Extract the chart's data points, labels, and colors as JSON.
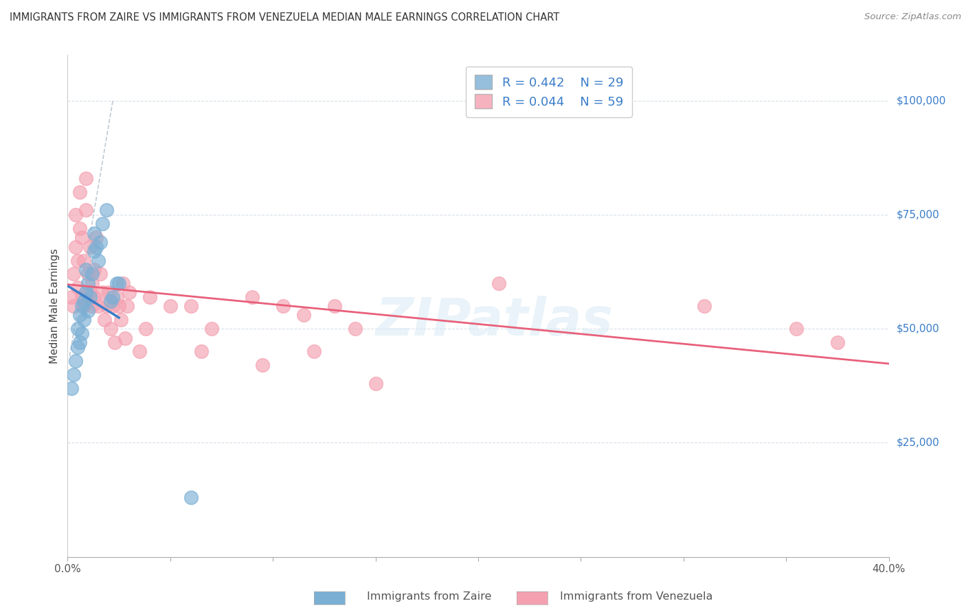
{
  "title": "IMMIGRANTS FROM ZAIRE VS IMMIGRANTS FROM VENEZUELA MEDIAN MALE EARNINGS CORRELATION CHART",
  "source": "Source: ZipAtlas.com",
  "ylabel": "Median Male Earnings",
  "xlim": [
    0.0,
    0.4
  ],
  "ylim": [
    0,
    110000
  ],
  "xticks": [
    0.0,
    0.05,
    0.1,
    0.15,
    0.2,
    0.25,
    0.3,
    0.35,
    0.4
  ],
  "xticklabels": [
    "0.0%",
    "",
    "",
    "",
    "",
    "",
    "",
    "",
    "40.0%"
  ],
  "yticks_right": [
    25000,
    50000,
    75000,
    100000
  ],
  "ytick_labels_right": [
    "$25,000",
    "$50,000",
    "$75,000",
    "$100,000"
  ],
  "zaire_color": "#7bafd4",
  "venezuela_color": "#f4a0b0",
  "zaire_line_color": "#3a7dc9",
  "venezuela_line_color": "#e8607a",
  "diagonal_color": "#b8c4d0",
  "R_zaire": 0.442,
  "N_zaire": 29,
  "R_venezuela": 0.044,
  "N_venezuela": 59,
  "watermark": "ZIPatlas",
  "zaire_x": [
    0.002,
    0.003,
    0.004,
    0.005,
    0.005,
    0.006,
    0.006,
    0.007,
    0.007,
    0.008,
    0.008,
    0.009,
    0.009,
    0.01,
    0.01,
    0.011,
    0.012,
    0.013,
    0.013,
    0.014,
    0.015,
    0.016,
    0.017,
    0.019,
    0.021,
    0.022,
    0.024,
    0.025,
    0.06
  ],
  "zaire_y": [
    37000,
    40000,
    43000,
    46000,
    50000,
    47000,
    53000,
    49000,
    55000,
    52000,
    56000,
    58000,
    63000,
    54000,
    60000,
    57000,
    62000,
    67000,
    71000,
    68000,
    65000,
    69000,
    73000,
    76000,
    56000,
    57000,
    60000,
    60000,
    13000
  ],
  "venezuela_x": [
    0.002,
    0.003,
    0.003,
    0.004,
    0.004,
    0.005,
    0.005,
    0.006,
    0.006,
    0.007,
    0.007,
    0.008,
    0.008,
    0.009,
    0.009,
    0.01,
    0.01,
    0.011,
    0.011,
    0.012,
    0.012,
    0.013,
    0.013,
    0.014,
    0.015,
    0.016,
    0.017,
    0.018,
    0.019,
    0.02,
    0.021,
    0.022,
    0.023,
    0.024,
    0.025,
    0.026,
    0.027,
    0.028,
    0.029,
    0.03,
    0.035,
    0.038,
    0.04,
    0.05,
    0.06,
    0.065,
    0.07,
    0.09,
    0.095,
    0.105,
    0.115,
    0.12,
    0.13,
    0.14,
    0.15,
    0.21,
    0.31,
    0.355,
    0.375
  ],
  "venezuela_y": [
    57000,
    55000,
    62000,
    68000,
    75000,
    59000,
    65000,
    80000,
    72000,
    70000,
    57000,
    65000,
    55000,
    83000,
    76000,
    62000,
    56000,
    58000,
    68000,
    55000,
    60000,
    63000,
    57000,
    70000,
    55000,
    62000,
    58000,
    52000,
    55000,
    58000,
    50000,
    55000,
    47000,
    57000,
    55000,
    52000,
    60000,
    48000,
    55000,
    58000,
    45000,
    50000,
    57000,
    55000,
    55000,
    45000,
    50000,
    57000,
    42000,
    55000,
    53000,
    45000,
    55000,
    50000,
    38000,
    60000,
    55000,
    50000,
    47000
  ]
}
